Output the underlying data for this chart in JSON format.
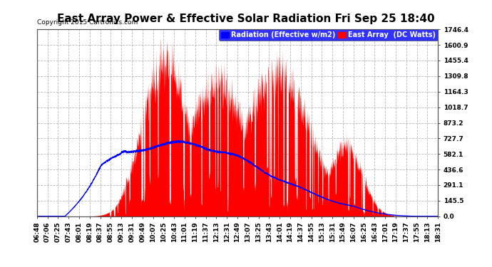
{
  "title": "East Array Power & Effective Solar Radiation Fri Sep 25 18:40",
  "copyright": "Copyright 2015 Cartronics.com",
  "legend_radiation": "Radiation (Effective w/m2)",
  "legend_array": "East Array  (DC Watts)",
  "yticks": [
    0.0,
    145.5,
    291.1,
    436.6,
    582.1,
    727.7,
    873.2,
    1018.7,
    1164.3,
    1309.8,
    1455.4,
    1600.9,
    1746.4
  ],
  "ymax": 1746.4,
  "ymin": 0.0,
  "bg_color": "#ffffff",
  "plot_bg_color": "#ffffff",
  "grid_color": "#999999",
  "title_fontsize": 11,
  "tick_fontsize": 6.5,
  "legend_fontsize": 7,
  "xtick_labels": [
    "06:48",
    "07:06",
    "07:25",
    "07:43",
    "08:01",
    "08:19",
    "08:37",
    "08:55",
    "09:13",
    "09:31",
    "09:49",
    "10:07",
    "10:25",
    "10:43",
    "11:01",
    "11:19",
    "11:37",
    "12:13",
    "12:31",
    "12:49",
    "13:07",
    "13:25",
    "13:43",
    "14:01",
    "14:19",
    "14:37",
    "14:55",
    "15:13",
    "15:31",
    "15:49",
    "16:07",
    "16:25",
    "16:43",
    "17:01",
    "17:19",
    "17:37",
    "17:55",
    "18:13",
    "18:31"
  ],
  "n_points": 2000
}
